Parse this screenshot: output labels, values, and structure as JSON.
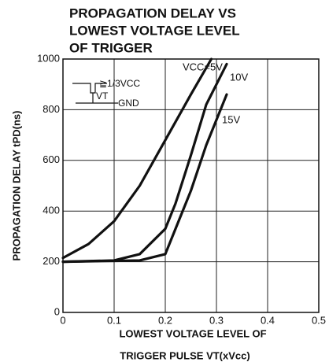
{
  "chart_data": {
    "type": "line",
    "title": [
      "PROPAGATION DELAY VS",
      "LOWEST VOLTAGE LEVEL",
      "OF TRIGGER"
    ],
    "x_label": [
      "LOWEST VOLTAGE LEVEL OF",
      "TRIGGER PULSE VT(xVcc)"
    ],
    "y_label": "PROPAGATION DELAY tPD(ns)",
    "annotations": [
      "≧1/3VCC",
      "VT",
      "GND"
    ],
    "series": [
      {
        "name": "VCC=5V",
        "color": "#111111",
        "x": [
          0,
          0.05,
          0.1,
          0.15,
          0.2,
          0.25,
          0.29
        ],
        "values": [
          215,
          270,
          360,
          500,
          680,
          860,
          1000
        ]
      },
      {
        "name": "10V",
        "color": "#111111",
        "x": [
          0,
          0.1,
          0.15,
          0.2,
          0.22,
          0.25,
          0.28,
          0.32
        ],
        "values": [
          200,
          205,
          230,
          330,
          430,
          620,
          820,
          980
        ]
      },
      {
        "name": "15V",
        "color": "#111111",
        "x": [
          0,
          0.15,
          0.2,
          0.22,
          0.25,
          0.28,
          0.32
        ],
        "values": [
          200,
          205,
          230,
          330,
          480,
          660,
          860
        ]
      }
    ],
    "xlim": [
      0,
      0.5
    ],
    "xticks": [
      0,
      0.1,
      0.2,
      0.3,
      0.4,
      0.5
    ],
    "ylim": [
      0,
      1000
    ],
    "yticks": [
      0,
      200,
      400,
      600,
      800,
      1000
    ],
    "grid": true
  }
}
